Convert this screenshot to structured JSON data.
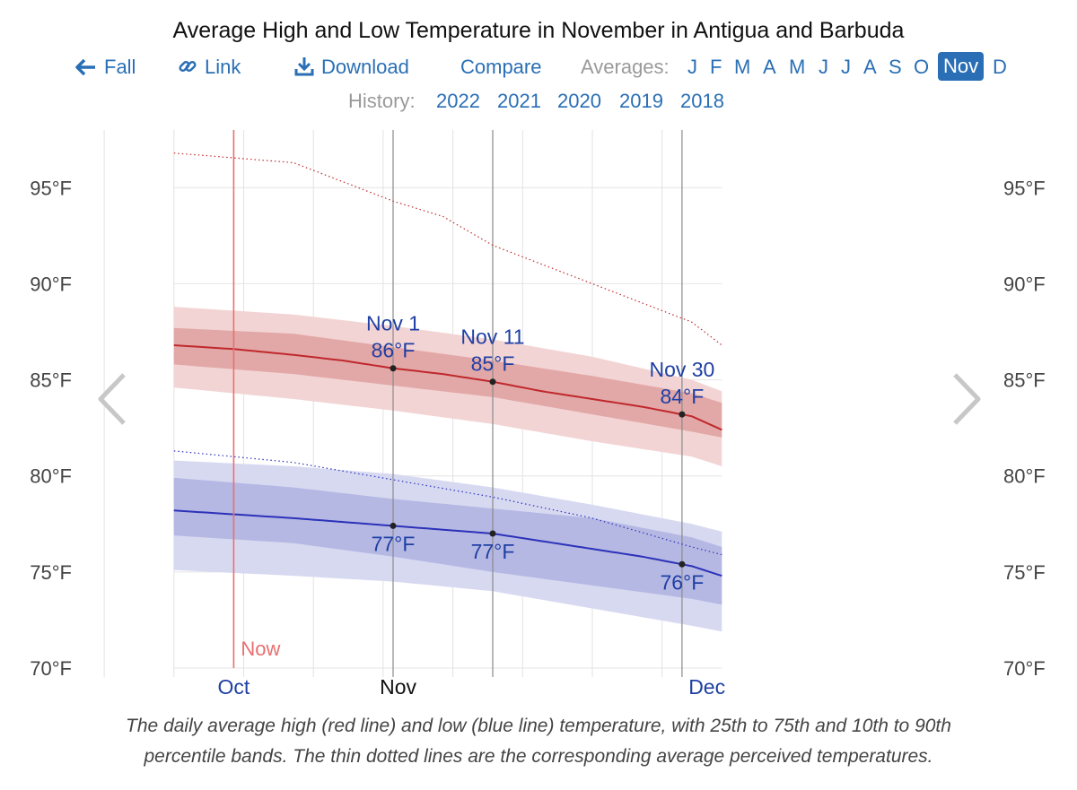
{
  "title": "Average High and Low Temperature in November in Antigua and Barbuda",
  "nav": {
    "fall": "Fall",
    "link": "Link",
    "download": "Download",
    "compare": "Compare",
    "averages_label": "Averages:",
    "months": [
      "J",
      "F",
      "M",
      "A",
      "M",
      "J",
      "J",
      "A",
      "S",
      "O",
      "Nov",
      "D"
    ],
    "selected_month": "Nov"
  },
  "history": {
    "label": "History:",
    "years": [
      "2022",
      "2021",
      "2020",
      "2019",
      "2018"
    ]
  },
  "caption_line1": "The daily average high (red line) and low (blue line) temperature, with 25th to 75th and 10th to 90th",
  "caption_line2": "percentile bands. The thin dotted lines are the corresponding average perceived temperatures.",
  "colors": {
    "high": "#c0282c",
    "low": "#2c32b8",
    "high_band_inner": "#dc9a9a",
    "high_band_outer": "#f3d4d4",
    "low_band_inner": "#a9acdd",
    "low_band_outer": "#d7d9f1",
    "now": "#e87070",
    "label": "#1f3fa3",
    "link": "#2a6fb5"
  },
  "chart_data": {
    "type": "line",
    "x_unit": "day offset from Nov 1",
    "x_range": [
      -32,
      33
    ],
    "ylim": [
      70,
      98
    ],
    "yticks": [
      70,
      75,
      80,
      85,
      90,
      95
    ],
    "ytick_labels": [
      "70°F",
      "75°F",
      "80°F",
      "85°F",
      "90°F",
      "95°F"
    ],
    "x_month_labels": [
      {
        "label": "Oct",
        "day": -16,
        "current": false
      },
      {
        "label": "Nov",
        "day": 0.5,
        "current": true
      },
      {
        "label": "Dec",
        "day": 31.5,
        "current": false
      }
    ],
    "now_label": "Now",
    "now_day": -16,
    "series": [
      {
        "name": "Average high",
        "x": [
          -22,
          -16,
          -10,
          -5,
          0,
          5,
          10,
          15,
          20,
          25,
          30,
          33
        ],
        "values": [
          86.8,
          86.6,
          86.3,
          86.0,
          85.6,
          85.3,
          84.9,
          84.4,
          84.0,
          83.6,
          83.1,
          82.4
        ]
      },
      {
        "name": "High 25th percentile",
        "x": [
          -22,
          -10,
          0,
          10,
          20,
          30,
          33
        ],
        "values": [
          85.8,
          85.3,
          84.7,
          84.1,
          83.2,
          82.3,
          82.0
        ]
      },
      {
        "name": "High 75th percentile",
        "x": [
          -22,
          -10,
          0,
          10,
          20,
          30,
          33
        ],
        "values": [
          87.7,
          87.4,
          86.7,
          86.0,
          85.2,
          84.3,
          83.8
        ]
      },
      {
        "name": "High 10th percentile",
        "x": [
          -22,
          -10,
          0,
          10,
          20,
          30,
          33
        ],
        "values": [
          84.6,
          84.0,
          83.4,
          82.7,
          81.8,
          81.0,
          80.5
        ]
      },
      {
        "name": "High 90th percentile",
        "x": [
          -22,
          -10,
          0,
          10,
          20,
          30,
          33
        ],
        "values": [
          88.8,
          88.4,
          87.8,
          87.1,
          86.2,
          85.0,
          84.4
        ]
      },
      {
        "name": "Perceived high",
        "x": [
          -22,
          -10,
          0,
          5,
          10,
          20,
          30,
          33
        ],
        "values": [
          96.8,
          96.3,
          94.3,
          93.5,
          92.0,
          90.0,
          88.0,
          86.8
        ]
      },
      {
        "name": "Average low",
        "x": [
          -22,
          -16,
          -10,
          -5,
          0,
          5,
          10,
          15,
          20,
          25,
          30,
          33
        ],
        "values": [
          78.2,
          78.0,
          77.8,
          77.6,
          77.4,
          77.2,
          77.0,
          76.6,
          76.2,
          75.8,
          75.3,
          74.8
        ]
      },
      {
        "name": "Low 25th percentile",
        "x": [
          -22,
          -10,
          0,
          10,
          20,
          30,
          33
        ],
        "values": [
          76.9,
          76.5,
          75.8,
          75.0,
          74.3,
          73.6,
          73.3
        ]
      },
      {
        "name": "Low 75th percentile",
        "x": [
          -22,
          -10,
          0,
          10,
          20,
          30,
          33
        ],
        "values": [
          79.9,
          79.4,
          78.8,
          78.3,
          77.8,
          76.8,
          76.3
        ]
      },
      {
        "name": "Low 10th percentile",
        "x": [
          -22,
          -10,
          0,
          10,
          20,
          30,
          33
        ],
        "values": [
          75.1,
          74.8,
          74.5,
          74.0,
          73.1,
          72.2,
          71.9
        ]
      },
      {
        "name": "Low 90th percentile",
        "x": [
          -22,
          -10,
          0,
          10,
          20,
          30,
          33
        ],
        "values": [
          80.8,
          80.5,
          80.1,
          79.4,
          78.5,
          77.5,
          77.1
        ]
      },
      {
        "name": "Perceived low",
        "x": [
          -22,
          -10,
          0,
          10,
          20,
          30,
          33
        ],
        "values": [
          81.3,
          80.7,
          79.8,
          78.9,
          77.8,
          76.3,
          75.9
        ]
      }
    ],
    "annotations": [
      {
        "date": "Nov 1",
        "day": 0,
        "high": 86,
        "high_label": "86°F",
        "low": 77,
        "low_label": "77°F"
      },
      {
        "date": "Nov 11",
        "day": 10,
        "high": 85,
        "high_label": "85°F",
        "low": 77,
        "low_label": "77°F"
      },
      {
        "date": "Nov 30",
        "day": 29,
        "high": 84,
        "high_label": "84°F",
        "low": 76,
        "low_label": "76°F"
      }
    ],
    "title": "Average High and Low Temperature in November in Antigua and Barbuda",
    "xlabel": "",
    "ylabel": ""
  }
}
